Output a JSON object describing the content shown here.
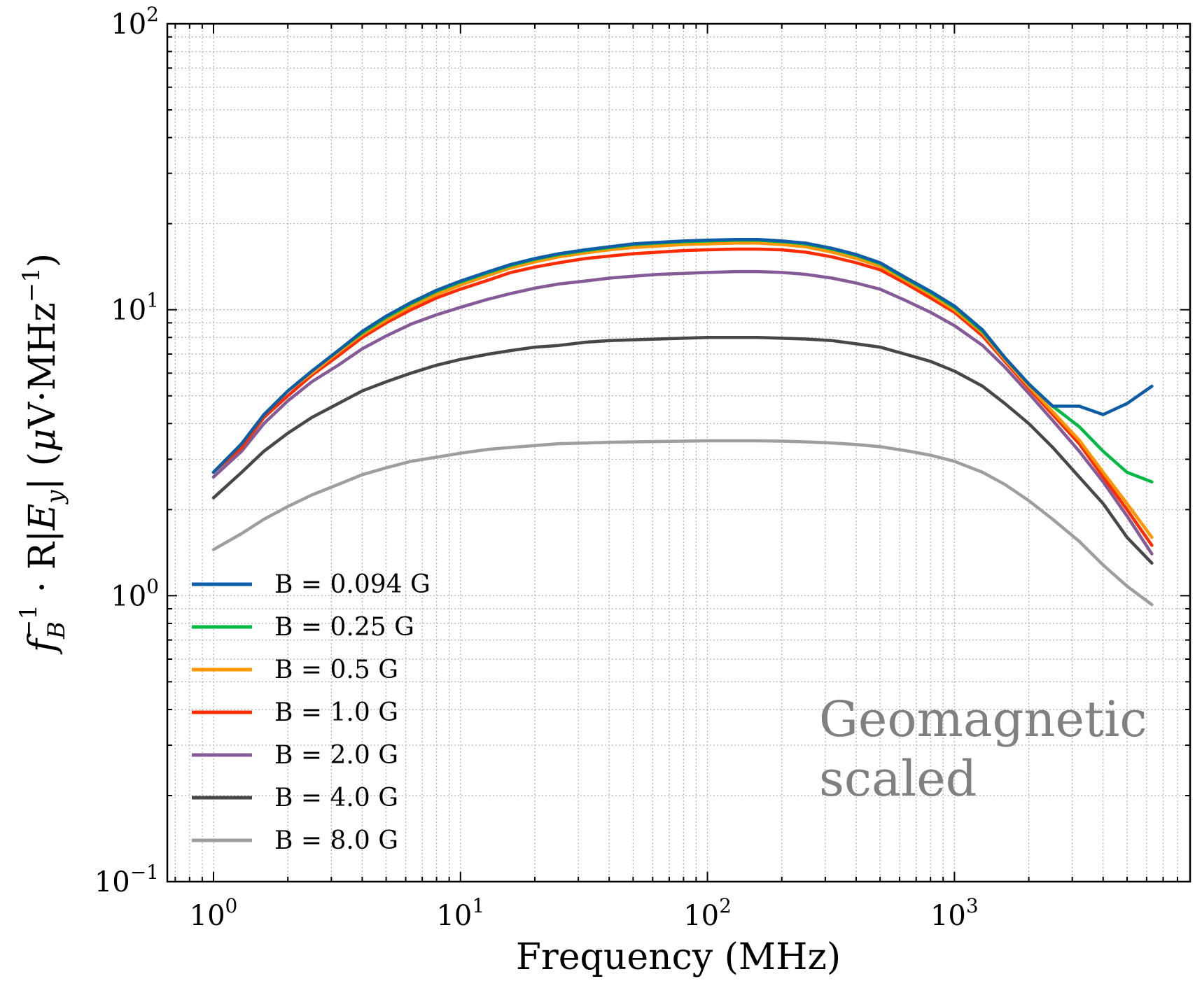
{
  "chart_data": {
    "type": "line",
    "x_scale": "log",
    "y_scale": "log",
    "xlabel": "Frequency (MHz)",
    "ylabel_parts": {
      "f": "f",
      "sub": "B",
      "sup": "−1",
      "mid": " · R|",
      "E": "E",
      "Esub": "y",
      "unit_open": "| (",
      "mu": "μ",
      "unit": "V·MHz",
      "unit_sup": "−1",
      "unit_close": ")"
    },
    "xlim": [
      0.65,
      9000
    ],
    "ylim": [
      0.1,
      100
    ],
    "grid": true,
    "x_ticks": [
      {
        "base": "10",
        "exp": "0",
        "value": 1
      },
      {
        "base": "10",
        "exp": "1",
        "value": 10
      },
      {
        "base": "10",
        "exp": "2",
        "value": 100
      },
      {
        "base": "10",
        "exp": "3",
        "value": 1000
      }
    ],
    "y_ticks": [
      {
        "base": "10",
        "exp": "−1",
        "value": 0.1
      },
      {
        "base": "10",
        "exp": "0",
        "value": 1
      },
      {
        "base": "10",
        "exp": "1",
        "value": 10
      },
      {
        "base": "10",
        "exp": "2",
        "value": 100
      }
    ],
    "legend_position": "lower-left",
    "annotation": [
      "Geomagnetic",
      "scaled"
    ],
    "x": [
      1.0,
      1.3,
      1.6,
      2.0,
      2.5,
      3.2,
      4.0,
      5.0,
      6.3,
      8.0,
      10,
      13,
      16,
      20,
      25,
      32,
      40,
      50,
      63,
      80,
      100,
      130,
      160,
      200,
      250,
      320,
      400,
      500,
      630,
      800,
      1000,
      1300,
      1600,
      2000,
      2500,
      3200,
      4000,
      5000,
      6300
    ],
    "series": [
      {
        "name": "B = 0.094 G",
        "color": "#0c5da5",
        "values": [
          2.7,
          3.4,
          4.3,
          5.2,
          6.1,
          7.2,
          8.4,
          9.5,
          10.6,
          11.7,
          12.6,
          13.6,
          14.4,
          15.1,
          15.7,
          16.2,
          16.6,
          17.0,
          17.2,
          17.4,
          17.5,
          17.6,
          17.6,
          17.4,
          17.1,
          16.4,
          15.6,
          14.6,
          13.0,
          11.6,
          10.3,
          8.5,
          6.8,
          5.5,
          4.6,
          4.6,
          4.3,
          4.7,
          5.4
        ]
      },
      {
        "name": "B = 0.25 G",
        "color": "#00b945",
        "values": [
          2.7,
          3.4,
          4.3,
          5.2,
          6.1,
          7.2,
          8.3,
          9.4,
          10.5,
          11.6,
          12.5,
          13.5,
          14.3,
          15.0,
          15.6,
          16.1,
          16.5,
          16.9,
          17.1,
          17.3,
          17.4,
          17.5,
          17.5,
          17.3,
          17.0,
          16.3,
          15.5,
          14.5,
          12.9,
          11.5,
          10.2,
          8.4,
          6.8,
          5.5,
          4.6,
          3.9,
          3.2,
          2.7,
          2.5
        ]
      },
      {
        "name": "B = 0.5 G",
        "color": "#ff9500",
        "values": [
          2.7,
          3.4,
          4.3,
          5.2,
          6.0,
          7.1,
          8.2,
          9.2,
          10.3,
          11.3,
          12.2,
          13.2,
          14.0,
          14.7,
          15.3,
          15.8,
          16.2,
          16.5,
          16.7,
          16.9,
          17.0,
          17.1,
          17.1,
          16.9,
          16.6,
          15.9,
          15.1,
          14.2,
          12.7,
          11.3,
          10.0,
          8.3,
          6.7,
          5.4,
          4.4,
          3.5,
          2.7,
          2.1,
          1.6
        ]
      },
      {
        "name": "B = 1.0 G",
        "color": "#ff2c00",
        "values": [
          2.7,
          3.3,
          4.2,
          5.0,
          5.9,
          6.9,
          8.0,
          9.0,
          10.0,
          11.0,
          11.8,
          12.7,
          13.5,
          14.1,
          14.6,
          15.1,
          15.4,
          15.7,
          15.9,
          16.1,
          16.2,
          16.3,
          16.3,
          16.2,
          15.9,
          15.3,
          14.6,
          13.8,
          12.4,
          11.0,
          9.8,
          8.1,
          6.6,
          5.3,
          4.3,
          3.4,
          2.6,
          2.0,
          1.5
        ]
      },
      {
        "name": "B = 2.0 G",
        "color": "#845b97",
        "values": [
          2.6,
          3.2,
          4.0,
          4.8,
          5.6,
          6.4,
          7.3,
          8.1,
          8.9,
          9.6,
          10.2,
          10.9,
          11.4,
          11.9,
          12.3,
          12.6,
          12.9,
          13.1,
          13.3,
          13.4,
          13.5,
          13.6,
          13.6,
          13.5,
          13.3,
          12.9,
          12.4,
          11.8,
          10.8,
          9.8,
          8.8,
          7.5,
          6.3,
          5.1,
          4.1,
          3.2,
          2.5,
          1.9,
          1.4
        ]
      },
      {
        "name": "B = 4.0 G",
        "color": "#474747",
        "values": [
          2.2,
          2.7,
          3.2,
          3.7,
          4.2,
          4.7,
          5.2,
          5.6,
          6.0,
          6.4,
          6.7,
          7.0,
          7.2,
          7.4,
          7.5,
          7.7,
          7.8,
          7.85,
          7.9,
          7.95,
          8.0,
          8.0,
          8.0,
          7.95,
          7.9,
          7.8,
          7.6,
          7.4,
          7.0,
          6.6,
          6.1,
          5.4,
          4.7,
          4.0,
          3.3,
          2.6,
          2.1,
          1.6,
          1.3
        ]
      },
      {
        "name": "B = 8.0 G",
        "color": "#9e9e9e",
        "values": [
          1.45,
          1.65,
          1.85,
          2.05,
          2.25,
          2.45,
          2.65,
          2.8,
          2.95,
          3.05,
          3.15,
          3.25,
          3.3,
          3.35,
          3.4,
          3.42,
          3.44,
          3.45,
          3.46,
          3.47,
          3.48,
          3.48,
          3.48,
          3.47,
          3.45,
          3.42,
          3.38,
          3.32,
          3.22,
          3.1,
          2.95,
          2.7,
          2.45,
          2.15,
          1.85,
          1.55,
          1.28,
          1.08,
          0.93
        ]
      }
    ]
  }
}
